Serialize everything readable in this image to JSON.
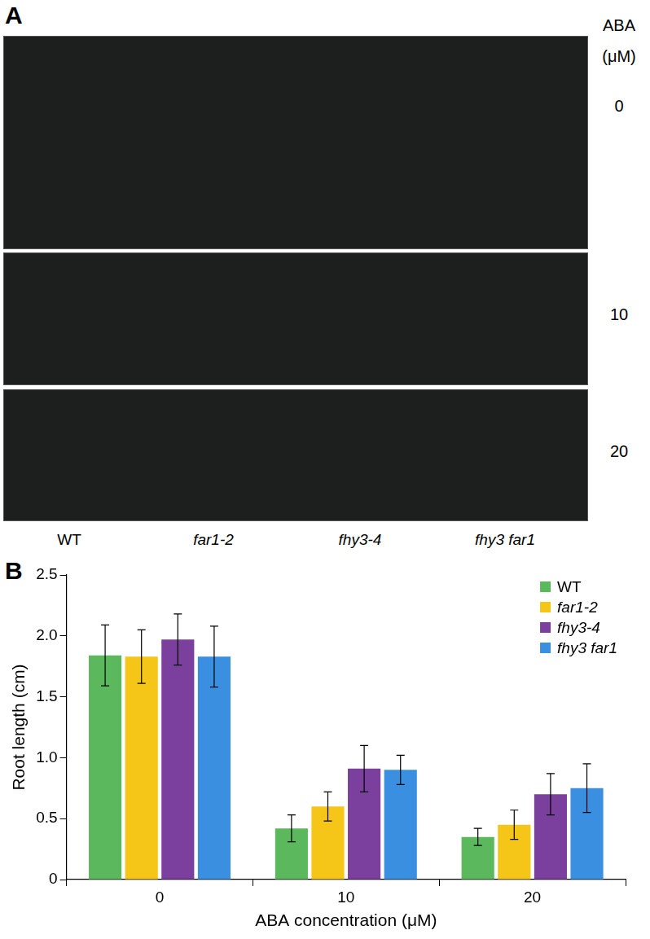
{
  "panels": [
    {
      "label": "A",
      "condition_title": [
        "ABA",
        "(μM)"
      ],
      "conditions": [
        "0",
        "10",
        "20"
      ],
      "genotypes": [
        "WT",
        "far1-2",
        "fhy3-4",
        "fhy3 far1"
      ]
    },
    {
      "label": "B"
    }
  ],
  "chart_data": {
    "type": "bar",
    "x_label": "ABA concentration (μM)",
    "y_label": "Root length (cm)",
    "categories": [
      "0",
      "10",
      "20"
    ],
    "series": [
      {
        "name": "WT",
        "color": "#5cb85c",
        "values": [
          1.84,
          0.42,
          0.35
        ],
        "errors": [
          0.25,
          0.11,
          0.07
        ]
      },
      {
        "name": "far1-2",
        "color": "#f5c518",
        "values": [
          1.83,
          0.6,
          0.45
        ],
        "errors": [
          0.22,
          0.12,
          0.12
        ]
      },
      {
        "name": "fhy3-4",
        "color": "#7b3f9e",
        "values": [
          1.97,
          0.91,
          0.7
        ],
        "errors": [
          0.21,
          0.19,
          0.17
        ]
      },
      {
        "name": "fhy3 far1",
        "color": "#3a8fe0",
        "values": [
          1.83,
          0.9,
          0.75
        ],
        "errors": [
          0.25,
          0.12,
          0.2
        ]
      }
    ],
    "ylim": [
      0,
      2.5
    ],
    "yticks": [
      0,
      0.5,
      {
        "value": 1,
        "label": "1.0"
      },
      1.5,
      {
        "value": 2,
        "label": "2.0"
      },
      2.5
    ],
    "grid": false,
    "legend": "upper right"
  }
}
